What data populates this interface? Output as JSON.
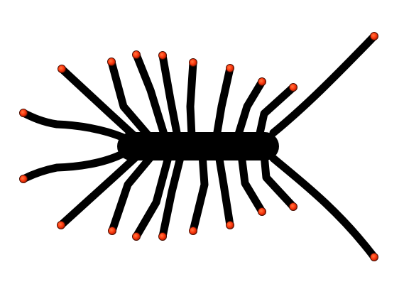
{
  "illustration": {
    "subject": "centipede-silhouette",
    "colors": {
      "background": "#ffffff",
      "body": "#000000",
      "tip_center": "#ff3a10",
      "tip_edge": "#b01e00"
    }
  }
}
